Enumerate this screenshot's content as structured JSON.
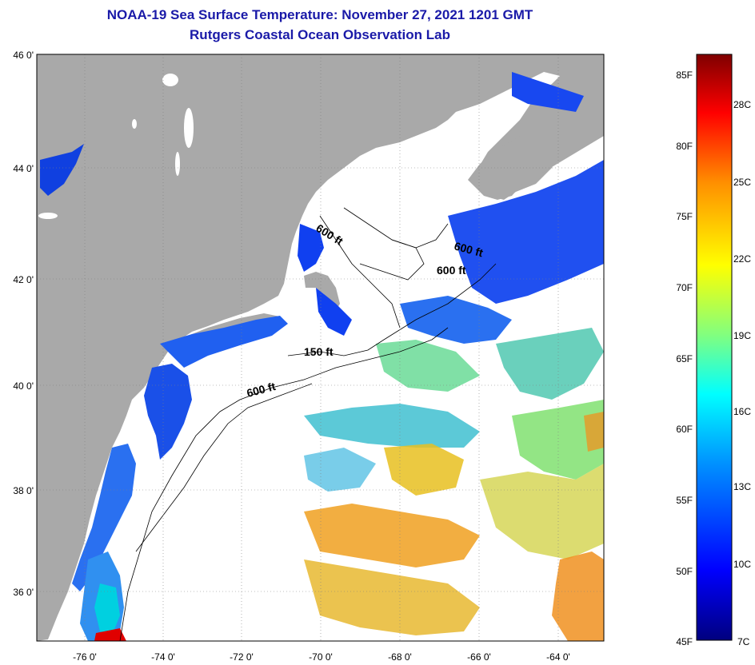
{
  "title": {
    "line1": "NOAA-19 Sea Surface Temperature:  November 27, 2021 1201 GMT",
    "line2": "Rutgers Coastal Ocean Observation Lab"
  },
  "map": {
    "lat_labels": [
      "46 0'",
      "44 0'",
      "42 0'",
      "40 0'",
      "38 0'",
      "36 0'"
    ],
    "lon_labels": [
      "-76 0'",
      "-74 0'",
      "-72 0'",
      "-70 0'",
      "-68 0'",
      "-66 0'",
      "-64 0'"
    ],
    "depth_labels": [
      "600 ft",
      "600 ft",
      "600 ft",
      "150 ft",
      "600 ft"
    ],
    "colors": {
      "land": "#a9a9a9",
      "ocean_cloud": "#ffffff",
      "grid": "#808080"
    }
  },
  "colorbar": {
    "fahrenheit": [
      "85F",
      "80F",
      "75F",
      "70F",
      "65F",
      "60F",
      "55F",
      "50F",
      "45F"
    ],
    "celsius": [
      "28C",
      "25C",
      "22C",
      "19C",
      "16C",
      "13C",
      "10C",
      "7C"
    ],
    "gradient_colors": [
      "#00007f",
      "#0000ff",
      "#0090ff",
      "#00ffff",
      "#80ff80",
      "#ffff00",
      "#ff9000",
      "#ff0000",
      "#7f0000"
    ]
  }
}
